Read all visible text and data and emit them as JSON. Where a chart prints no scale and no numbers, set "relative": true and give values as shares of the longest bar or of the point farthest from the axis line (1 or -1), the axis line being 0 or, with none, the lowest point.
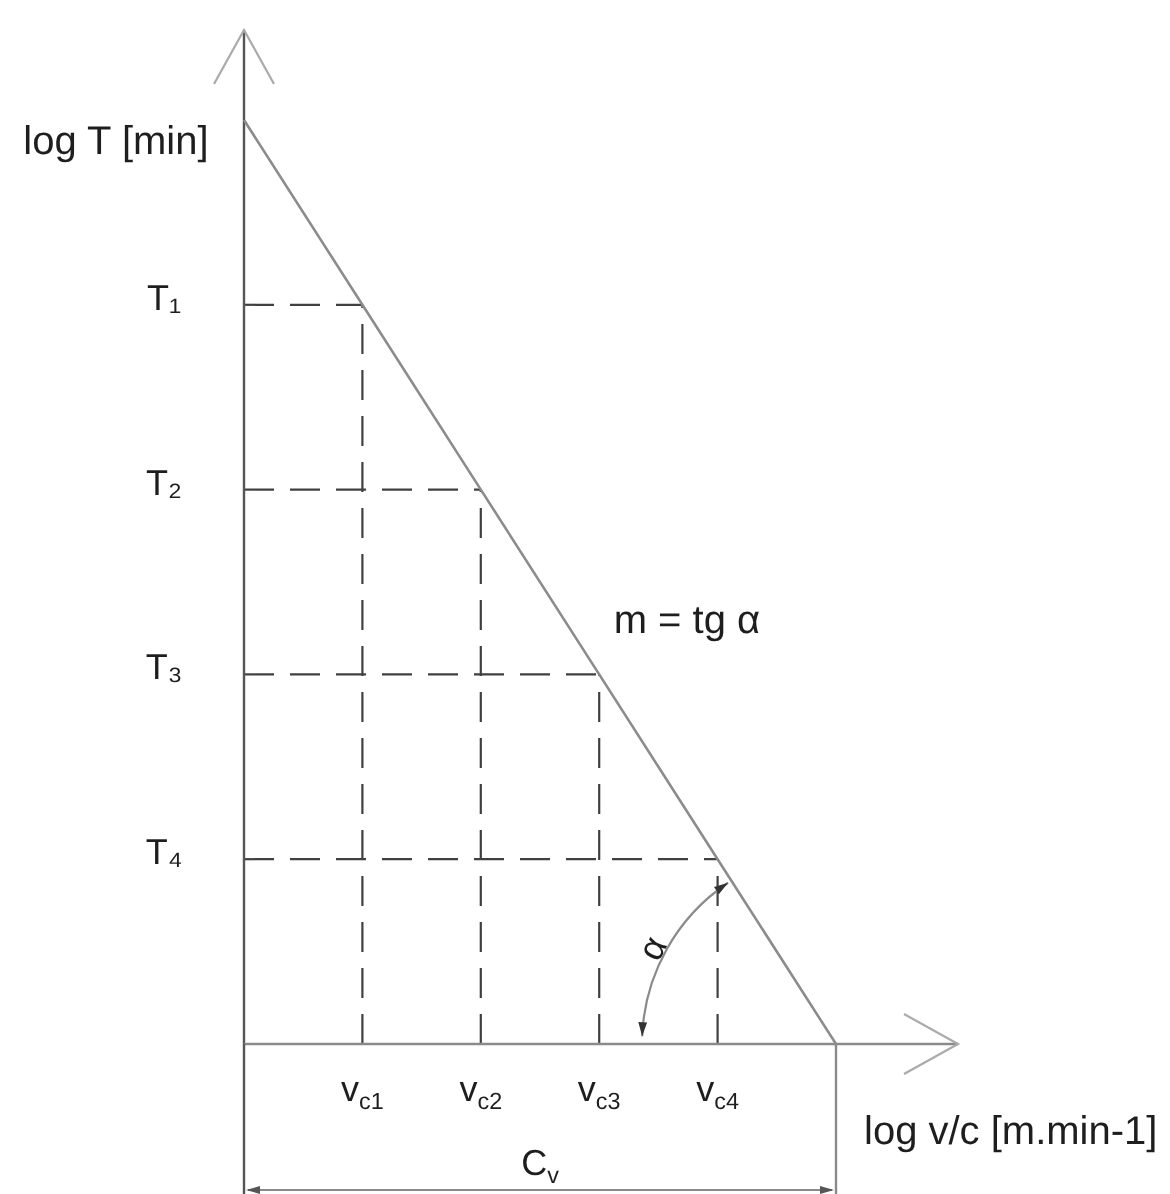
{
  "chart_data": {
    "type": "line",
    "relative": true,
    "xlabel": "log v/c [m.min-1]",
    "ylabel": "log T [min]",
    "categories": [
      null,
      "v$_{c1}$",
      "v$_{c2}$",
      "v$_{c3}$",
      "v$_{c4}$",
      null
    ],
    "values": [
      1,
      0.8,
      0.6,
      0.4,
      0.2,
      0
    ],
    "color": "#8c8c8c",
    "marker": "none",
    "line_style": "solid",
    "legend": false,
    "ref_lines": [
      {
        "axis": "y",
        "value": 0.8,
        "label": "T₁",
        "color": "#404040",
        "line_style": "dashed"
      },
      {
        "axis": "y",
        "value": 0.6,
        "label": "T₂",
        "color": "#404040",
        "line_style": "dashed"
      },
      {
        "axis": "y",
        "value": 0.4,
        "label": "T₃",
        "color": "#404040",
        "line_style": "dashed"
      },
      {
        "axis": "y",
        "value": 0.2,
        "label": "T₄",
        "color": "#404040",
        "line_style": "dashed"
      },
      {
        "axis": "x",
        "value": "v$_{c1}$",
        "color": "#404040",
        "line_style": "dashed"
      },
      {
        "axis": "x",
        "value": "v$_{c2}$",
        "color": "#404040",
        "line_style": "dashed"
      },
      {
        "axis": "x",
        "value": "v$_{c3}$",
        "color": "#404040",
        "line_style": "dashed"
      },
      {
        "axis": "x",
        "value": "v$_{c4}$",
        "color": "#404040",
        "line_style": "dashed"
      }
    ],
    "annotations": [
      "m = tg α",
      "α",
      "C$_{v}$"
    ]
  }
}
